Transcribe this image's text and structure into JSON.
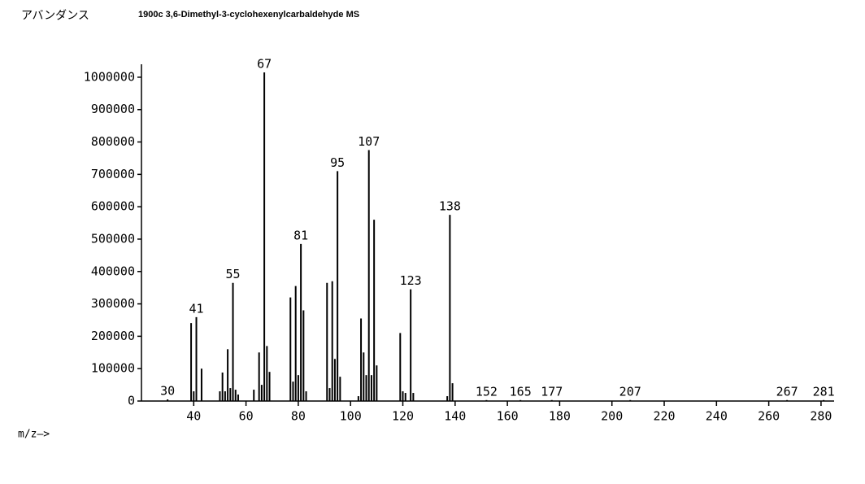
{
  "chart_data": {
    "type": "stick",
    "title": "1900c   3,6-Dimethyl-3-cyclohexenylcarbaldehyde   MS",
    "y_label": "アバンダンス",
    "x_label": "m/z—>",
    "x": [
      30,
      39,
      40,
      41,
      43,
      50,
      51,
      52,
      53,
      54,
      55,
      56,
      57,
      63,
      65,
      66,
      67,
      68,
      69,
      77,
      78,
      79,
      80,
      81,
      82,
      83,
      91,
      92,
      93,
      94,
      95,
      96,
      103,
      104,
      105,
      106,
      107,
      108,
      109,
      110,
      119,
      120,
      121,
      123,
      124,
      137,
      138,
      139,
      152,
      165,
      177,
      207,
      267,
      281
    ],
    "values": [
      5000,
      241000,
      30000,
      259000,
      100000,
      30000,
      88000,
      30000,
      160000,
      40000,
      365000,
      35000,
      20000,
      35000,
      150000,
      50000,
      1015000,
      170000,
      90000,
      320000,
      60000,
      355000,
      80000,
      485000,
      280000,
      30000,
      365000,
      40000,
      370000,
      130000,
      710000,
      75000,
      15000,
      255000,
      150000,
      80000,
      775000,
      80000,
      560000,
      110000,
      210000,
      30000,
      25000,
      345000,
      25000,
      15000,
      575000,
      55000,
      3000,
      3000,
      3000,
      3000,
      3000,
      3000
    ],
    "peak_labels": [
      30,
      null,
      null,
      41,
      null,
      null,
      null,
      null,
      null,
      null,
      55,
      null,
      null,
      null,
      null,
      null,
      67,
      null,
      null,
      null,
      null,
      null,
      null,
      81,
      null,
      null,
      null,
      null,
      null,
      null,
      95,
      null,
      null,
      null,
      null,
      null,
      107,
      null,
      null,
      null,
      null,
      null,
      null,
      123,
      null,
      null,
      138,
      null,
      152,
      165,
      177,
      207,
      267,
      281
    ],
    "color": "#000000",
    "xlim": [
      20,
      285
    ],
    "xticks": [
      40,
      60,
      80,
      100,
      120,
      140,
      160,
      180,
      200,
      220,
      240,
      260,
      280
    ],
    "ylim": [
      0,
      1040000
    ],
    "yticks": [
      0,
      100000,
      200000,
      300000,
      400000,
      500000,
      600000,
      700000,
      800000,
      900000,
      1000000
    ]
  }
}
